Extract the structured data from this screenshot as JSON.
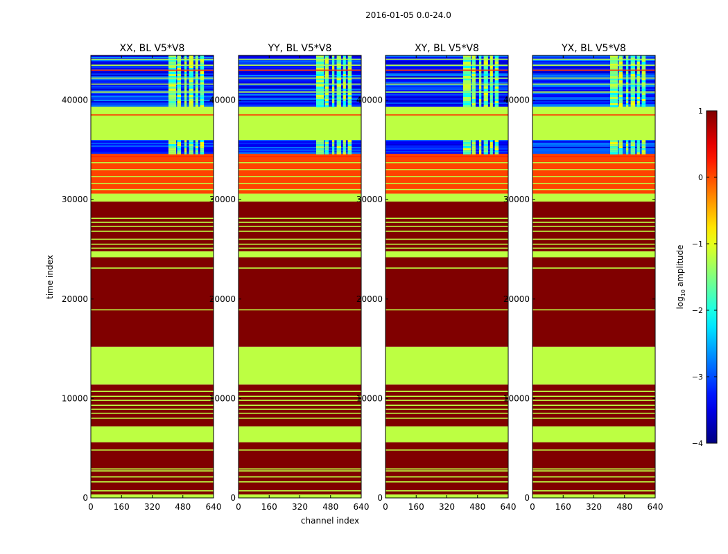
{
  "chart_data": {
    "type": "heatmap",
    "suptitle": "2016-01-05 0.0-24.0",
    "xlabel": "channel index",
    "ylabel": "time index",
    "xlim": [
      0,
      640
    ],
    "ylim": [
      0,
      44500
    ],
    "xticks": [
      0,
      160,
      320,
      480,
      640
    ],
    "yticks": [
      0,
      10000,
      20000,
      30000,
      40000
    ],
    "panels": [
      {
        "title": "XX, BL V5*V8",
        "rfi_channels": [
          [
            405,
            445
          ],
          [
            450,
            470
          ],
          [
            488,
            500
          ],
          [
            512,
            535
          ],
          [
            545,
            560
          ],
          [
            570,
            590
          ]
        ]
      },
      {
        "title": "YY, BL V5*V8",
        "rfi_channels": [
          [
            405,
            445
          ],
          [
            450,
            470
          ],
          [
            488,
            500
          ],
          [
            512,
            535
          ],
          [
            545,
            560
          ],
          [
            570,
            590
          ]
        ]
      },
      {
        "title": "XY, BL V5*V8",
        "rfi_channels": [
          [
            405,
            445
          ],
          [
            450,
            470
          ],
          [
            488,
            500
          ],
          [
            512,
            535
          ],
          [
            545,
            560
          ],
          [
            570,
            590
          ]
        ]
      },
      {
        "title": "YX, BL V5*V8",
        "rfi_channels": [
          [
            405,
            445
          ],
          [
            450,
            470
          ],
          [
            488,
            500
          ],
          [
            512,
            535
          ],
          [
            545,
            560
          ],
          [
            570,
            590
          ]
        ]
      }
    ],
    "time_bands": [
      {
        "t0": 0,
        "t1": 350,
        "value": -1.2
      },
      {
        "t0": 350,
        "t1": 5600,
        "value": 1
      },
      {
        "t0": 5600,
        "t1": 7200,
        "value": -1.2
      },
      {
        "t0": 7200,
        "t1": 11400,
        "value": 1
      },
      {
        "t0": 11400,
        "t1": 15200,
        "value": -1.2
      },
      {
        "t0": 15200,
        "t1": 24200,
        "value": 1
      },
      {
        "t0": 24200,
        "t1": 24800,
        "value": -1.2
      },
      {
        "t0": 24800,
        "t1": 29800,
        "value": 1
      },
      {
        "t0": 29800,
        "t1": 30600,
        "value": -1.2
      },
      {
        "t0": 30600,
        "t1": 34700,
        "value": 0.05
      },
      {
        "t0": 34700,
        "t1": 36000,
        "value": -3.3
      },
      {
        "t0": 36000,
        "t1": 39400,
        "value": -1.2
      },
      {
        "t0": 39400,
        "t1": 44500,
        "value": -3.4
      }
    ],
    "time_lines": [
      {
        "t": 700,
        "value": -1.2
      },
      {
        "t": 1600,
        "value": -1.2
      },
      {
        "t": 2100,
        "value": -1.2
      },
      {
        "t": 2700,
        "value": -1.2
      },
      {
        "t": 2900,
        "value": -1.2
      },
      {
        "t": 4800,
        "value": -1.2
      },
      {
        "t": 7500,
        "value": 1
      },
      {
        "t": 8000,
        "value": -1.2
      },
      {
        "t": 8500,
        "value": -1.2
      },
      {
        "t": 8900,
        "value": -1.2
      },
      {
        "t": 9300,
        "value": -1.2
      },
      {
        "t": 9800,
        "value": -1.2
      },
      {
        "t": 10200,
        "value": -1.2
      },
      {
        "t": 10700,
        "value": -1.2
      },
      {
        "t": 18900,
        "value": -1.2
      },
      {
        "t": 23100,
        "value": -1.2
      },
      {
        "t": 25100,
        "value": -1.2
      },
      {
        "t": 25500,
        "value": -1.2
      },
      {
        "t": 26000,
        "value": -1.2
      },
      {
        "t": 26800,
        "value": -1.2
      },
      {
        "t": 27300,
        "value": -1.2
      },
      {
        "t": 27700,
        "value": -1.2
      },
      {
        "t": 28100,
        "value": -1.2
      },
      {
        "t": 31000,
        "value": -1.2
      },
      {
        "t": 31600,
        "value": -1.2
      },
      {
        "t": 32300,
        "value": -1.2
      },
      {
        "t": 33000,
        "value": -1.2
      },
      {
        "t": 33700,
        "value": -1.2
      },
      {
        "t": 34300,
        "value": 0.2
      },
      {
        "t": 38500,
        "value": 0.1
      },
      {
        "t": 40800,
        "value": -1.2
      },
      {
        "t": 41600,
        "value": -1.2
      },
      {
        "t": 42200,
        "value": -1.2
      },
      {
        "t": 43000,
        "value": 0.1
      },
      {
        "t": 43500,
        "value": -1.2
      },
      {
        "t": 44100,
        "value": -1.2
      }
    ],
    "colorbar": {
      "label": "log",
      "label_sub": "10",
      "label_suffix": " amplitude",
      "min": -4,
      "max": 1,
      "ticks": [
        -4,
        -3,
        -2,
        -1,
        0,
        1
      ],
      "tick_labels": [
        "−4",
        "−3",
        "−2",
        "−1",
        "0",
        "1"
      ],
      "colormap": "jet"
    }
  }
}
